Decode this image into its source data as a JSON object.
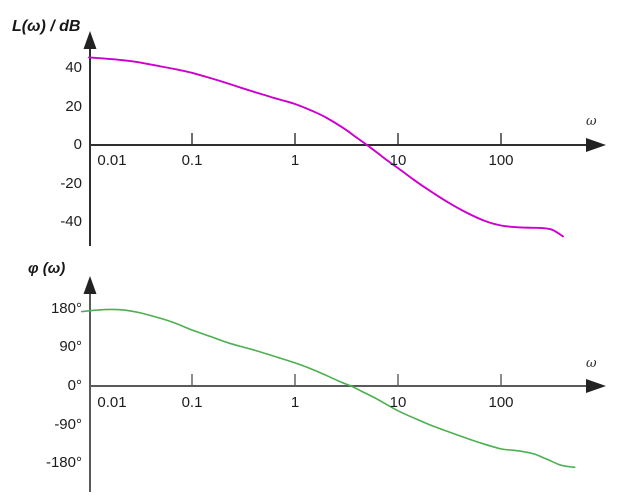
{
  "labels": {
    "magnitude_axis_title": "L(ω) / dB",
    "phase_axis_title": "φ (ω)",
    "omega_top": "ω",
    "omega_bottom": "ω"
  },
  "chart_data": [
    {
      "type": "line",
      "name": "bode-magnitude",
      "title": "L(ω) / dB",
      "xlabel": "ω",
      "ylabel": "L(ω) / dB",
      "x_scale": "log",
      "xlim": [
        0.01,
        760
      ],
      "ylim": [
        -55,
        55
      ],
      "grid": false,
      "legend": "none",
      "x_ticks": [
        0.01,
        0.1,
        1,
        10,
        100
      ],
      "x_tick_labels": [
        "0.01",
        "0.1",
        "1",
        "10",
        "100"
      ],
      "y_ticks": [
        40,
        20,
        0,
        -20,
        -40
      ],
      "y_tick_labels": [
        "40",
        "20",
        "0",
        "-20",
        "-40"
      ],
      "color": "#cc00cc",
      "axis_color": "#2f2f2f",
      "series": [
        {
          "name": "L(omega)",
          "points": [
            [
              0.01,
              45.5
            ],
            [
              0.015,
              44.8
            ],
            [
              0.02,
              44.2
            ],
            [
              0.03,
              43.0
            ],
            [
              0.05,
              40.8
            ],
            [
              0.07,
              39.3
            ],
            [
              0.1,
              37.5
            ],
            [
              0.15,
              34.8
            ],
            [
              0.2,
              32.8
            ],
            [
              0.3,
              29.7
            ],
            [
              0.5,
              26.0
            ],
            [
              0.7,
              23.7
            ],
            [
              1,
              21.3
            ],
            [
              1.5,
              17.5
            ],
            [
              2,
              14.3
            ],
            [
              3,
              8.5
            ],
            [
              4,
              3.7
            ],
            [
              5,
              0
            ],
            [
              6.5,
              -4.6
            ],
            [
              8,
              -8.3
            ],
            [
              10,
              -12.0
            ],
            [
              14,
              -17.8
            ],
            [
              20,
              -23.5
            ],
            [
              30,
              -29.5
            ],
            [
              45,
              -34.8
            ],
            [
              70,
              -39.5
            ],
            [
              100,
              -41.8
            ],
            [
              140,
              -42.7
            ],
            [
              200,
              -43.0
            ],
            [
              260,
              -43.2
            ],
            [
              320,
              -44.2
            ],
            [
              400,
              -47.5
            ]
          ]
        }
      ]
    },
    {
      "type": "line",
      "name": "bode-phase",
      "title": "φ (ω)",
      "xlabel": "ω",
      "ylabel": "φ (ω)",
      "x_scale": "log",
      "xlim": [
        0.0085,
        760
      ],
      "ylim": [
        -210,
        210
      ],
      "grid": false,
      "legend": "none",
      "x_ticks": [
        0.01,
        0.1,
        1,
        10,
        100
      ],
      "x_tick_labels": [
        "0.01",
        "0.1",
        "1",
        "10",
        "100"
      ],
      "y_ticks": [
        180,
        90,
        0,
        -90,
        -180
      ],
      "y_tick_labels": [
        "180°",
        "90°",
        "0°",
        "-90°",
        "-180°"
      ],
      "color": "#4caf50",
      "axis_color": "#5a5a5a",
      "series": [
        {
          "name": "phi(omega)",
          "points": [
            [
              0.0085,
              174
            ],
            [
              0.012,
              177.5
            ],
            [
              0.016,
              179
            ],
            [
              0.022,
              177.5
            ],
            [
              0.03,
              172
            ],
            [
              0.045,
              161
            ],
            [
              0.065,
              149
            ],
            [
              0.1,
              131
            ],
            [
              0.15,
              116
            ],
            [
              0.23,
              100
            ],
            [
              0.35,
              88
            ],
            [
              0.5,
              77
            ],
            [
              0.7,
              66
            ],
            [
              1,
              54
            ],
            [
              1.4,
              41
            ],
            [
              2,
              25
            ],
            [
              2.8,
              9
            ],
            [
              3.5,
              0
            ],
            [
              4.5,
              -13
            ],
            [
              6,
              -28
            ],
            [
              8,
              -45
            ],
            [
              10,
              -58
            ],
            [
              14,
              -74
            ],
            [
              20,
              -90
            ],
            [
              30,
              -106
            ],
            [
              45,
              -121
            ],
            [
              65,
              -134
            ],
            [
              100,
              -147
            ],
            [
              130,
              -150
            ],
            [
              170,
              -154
            ],
            [
              210,
              -159
            ],
            [
              260,
              -168
            ],
            [
              310,
              -176
            ],
            [
              370,
              -184
            ],
            [
              440,
              -188
            ],
            [
              520,
              -190
            ]
          ]
        }
      ]
    }
  ]
}
